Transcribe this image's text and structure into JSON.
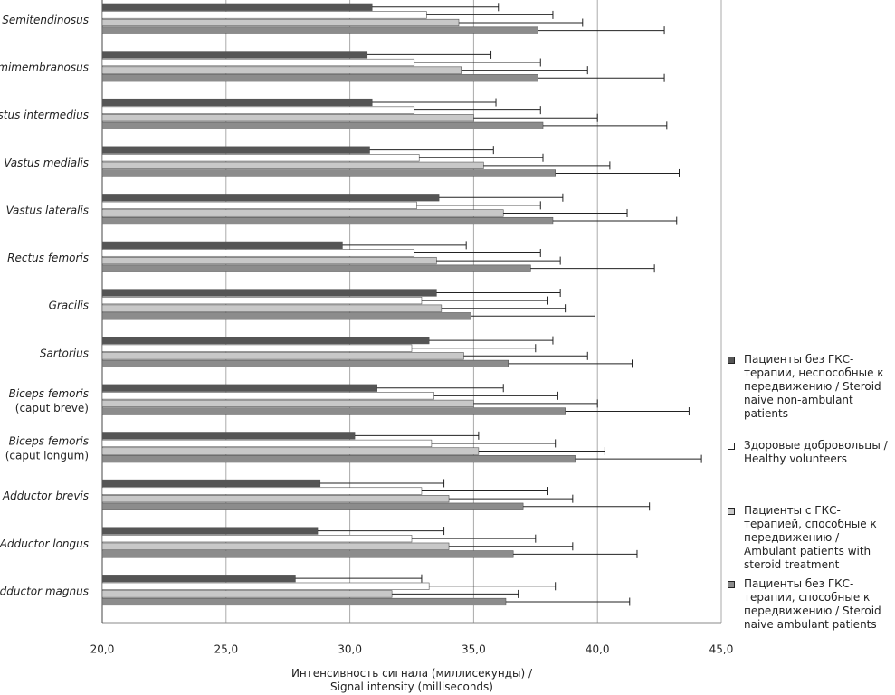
{
  "chart_data": {
    "type": "bar",
    "orientation": "horizontal",
    "x_label": "Интенсивность сигнала (миллисекунды) /\nSignal intensity (milliseconds)",
    "categories": [
      "Semitendinosus",
      "Semimembranosus",
      "Vastus intermedius",
      "Vastus medialis",
      "Vastus lateralis",
      "Rectus femoris",
      "Gracilis",
      "Sartorius",
      "Biceps femoris\n(caput breve)",
      "Biceps femoris\n(caput longum)",
      "Adductor brevis",
      "Adductor longus",
      "Adductor magnus"
    ],
    "series": [
      {
        "name": "Пациенты без ГКС-терапии, неспособные к передвижению / Steroid naive non-ambulant patients",
        "color": "#555555",
        "values": [
          30.9,
          30.7,
          30.9,
          30.8,
          33.6,
          29.7,
          33.5,
          33.2,
          31.1,
          30.2,
          28.8,
          28.7,
          27.8
        ],
        "errors": [
          5.1,
          5.0,
          5.0,
          5.0,
          5.0,
          5.0,
          5.0,
          5.0,
          5.1,
          5.0,
          5.0,
          5.1,
          5.1
        ]
      },
      {
        "name": "Здоровые добровольцы / Healthy volunteers",
        "color": "#ffffff",
        "values": [
          33.1,
          32.6,
          32.6,
          32.8,
          32.7,
          32.6,
          32.9,
          32.5,
          33.4,
          33.3,
          32.9,
          32.5,
          33.2
        ],
        "errors": [
          5.1,
          5.1,
          5.1,
          5.0,
          5.0,
          5.1,
          5.1,
          5.0,
          5.0,
          5.0,
          5.1,
          5.0,
          5.1
        ]
      },
      {
        "name": "Пациенты с ГКС-терапией, способные к передвижению / Ambulant patients with steroid treatment",
        "color": "#c8c8c8",
        "values": [
          34.4,
          34.5,
          35.0,
          35.4,
          36.2,
          33.5,
          33.7,
          34.6,
          35.0,
          35.2,
          34.0,
          34.0,
          31.7
        ],
        "errors": [
          5.0,
          5.1,
          5.0,
          5.1,
          5.0,
          5.0,
          5.0,
          5.0,
          5.0,
          5.1,
          5.0,
          5.0,
          5.1
        ]
      },
      {
        "name": "Пациенты без ГКС-терапии, способные к передвижению / Steroid naive ambulant patients",
        "color": "#8c8c8c",
        "values": [
          37.6,
          37.6,
          37.8,
          38.3,
          38.2,
          37.3,
          34.9,
          36.4,
          38.7,
          39.1,
          37.0,
          36.6,
          36.3
        ],
        "errors": [
          5.1,
          5.1,
          5.0,
          5.0,
          5.0,
          5.0,
          5.0,
          5.0,
          5.0,
          5.1,
          5.1,
          5.0,
          5.0
        ]
      }
    ],
    "xlim": [
      20,
      45
    ],
    "xticks": [
      {
        "value": 20,
        "label": "20,0"
      },
      {
        "value": 25,
        "label": "25,0"
      },
      {
        "value": 30,
        "label": "30,0"
      },
      {
        "value": 35,
        "label": "35,0"
      },
      {
        "value": 40,
        "label": "40,0"
      },
      {
        "value": 45,
        "label": "45,0"
      }
    ],
    "grid": true
  }
}
